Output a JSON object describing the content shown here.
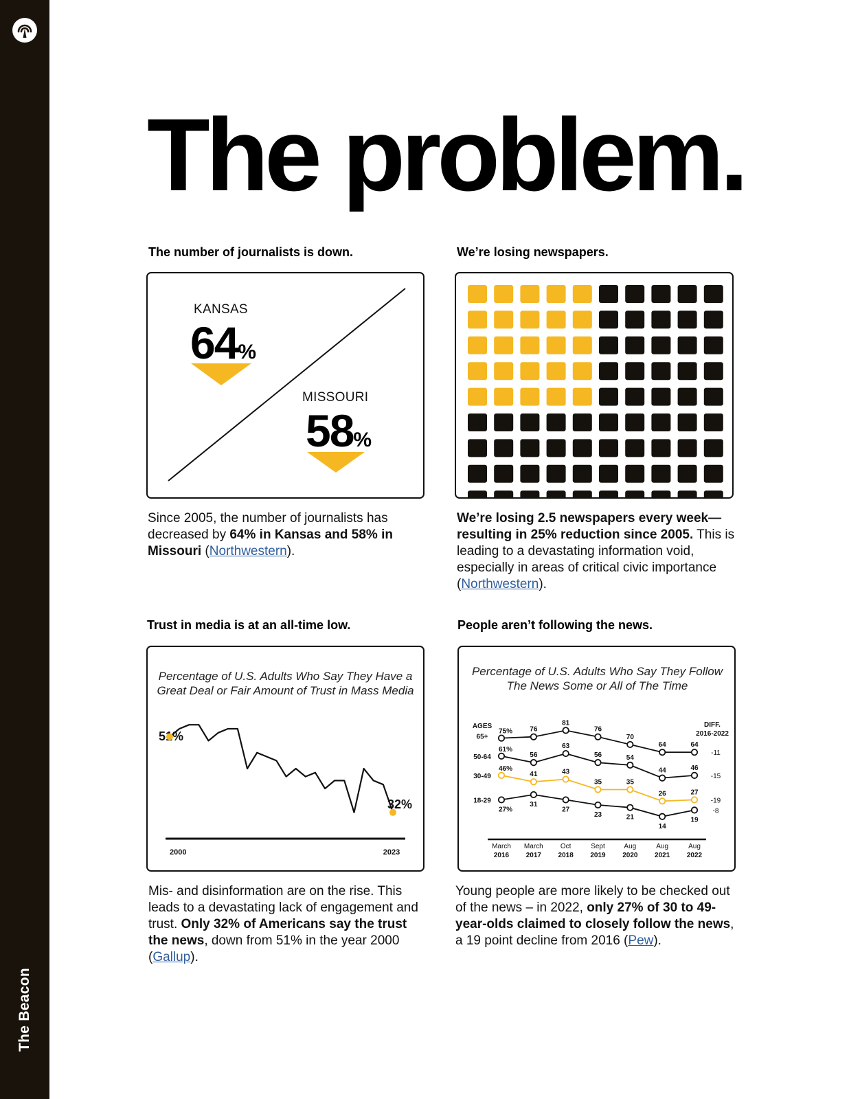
{
  "brand": {
    "name": "The Beacon",
    "logo_icon": "beacon-broadcast-icon"
  },
  "page_title": "The problem.",
  "colors": {
    "accent": "#f5b823",
    "dark": "#1a130c",
    "link": "#2f5e9e"
  },
  "sections": {
    "journalists": {
      "heading": "The number of journalists is down.",
      "kansas_label": "KANSAS",
      "kansas_value": "64",
      "missouri_label": "MISSOURI",
      "missouri_value": "58",
      "percent_sign": "%",
      "body_1": "Since 2005, the number of journalists has decreased by ",
      "body_bold": "64% in Kansas and 58% in Missouri",
      "body_2": " (",
      "link": "Northwestern",
      "body_3": ")."
    },
    "newspapers": {
      "heading": "We’re losing newspapers.",
      "grid": {
        "rows": 10,
        "cols": 10,
        "highlighted_rows": 5,
        "highlighted_cols": 5
      },
      "body_bold": "We’re losing 2.5 newspapers every week—resulting in 25% reduction since 2005.",
      "body_1": " This is leading to a devastating information void, especially in areas of critical civic importance (",
      "link": "Northwestern",
      "body_2": ")."
    },
    "trust": {
      "heading": "Trust in media is at an all-time low.",
      "body_1": "Mis- and disinformation are on the rise. This leads to a devastating lack of engagement and trust. ",
      "body_bold": "Only 32% of Americans say the trust the news",
      "body_2": ", down from 51% in the year 2000 (",
      "link": "Gallup",
      "body_3": ")."
    },
    "following": {
      "heading": "People aren’t following the news.",
      "body_1": "Young people are more likely to be checked out of the news – in 2022, ",
      "body_bold": "only 27% of 30 to 49-year-olds claimed to closely follow the news",
      "body_2": ", a 19 point decline from 2016 (",
      "link": "Pew",
      "body_3": ")."
    }
  },
  "chart_data": [
    {
      "type": "line",
      "title": "Percentage of U.S. Adults Who Say They Have a Great Deal or Fair Amount of Trust in Mass Media",
      "x_start_label": "2000",
      "x_end_label": "2023",
      "start_value_label": "51%",
      "end_value_label": "32%",
      "x": [
        2000,
        2001,
        2002,
        2003,
        2004,
        2005,
        2006,
        2007,
        2008,
        2009,
        2010,
        2011,
        2012,
        2013,
        2014,
        2015,
        2016,
        2017,
        2018,
        2019,
        2020,
        2021,
        2022,
        2023
      ],
      "values": [
        51,
        53,
        54,
        54,
        50,
        52,
        53,
        53,
        43,
        47,
        46,
        45,
        41,
        43,
        41,
        42,
        38,
        40,
        40,
        32,
        43,
        40,
        39,
        32
      ],
      "ylim": [
        28,
        58
      ],
      "highlight_color": "#f5b823",
      "line_color": "#111111"
    },
    {
      "type": "line",
      "title": "Percentage of U.S. Adults Who Say They Follow The News Some or All of The Time",
      "categories": [
        [
          "March",
          "2016"
        ],
        [
          "March",
          "2017"
        ],
        [
          "Oct",
          "2018"
        ],
        [
          "Sept",
          "2019"
        ],
        [
          "Aug",
          "2020"
        ],
        [
          "Aug",
          "2021"
        ],
        [
          "Aug",
          "2022"
        ]
      ],
      "legend_header": "AGES",
      "diff_header": [
        "DIFF.",
        "2016-2022"
      ],
      "ylim": [
        8,
        86
      ],
      "series": [
        {
          "name": "65+",
          "values": [
            75,
            76,
            81,
            76,
            70,
            64,
            64
          ],
          "labels": [
            "75%",
            "76",
            "81",
            "76",
            "70",
            "64",
            "64"
          ],
          "diff": "-11",
          "color": "#111111",
          "highlight": false
        },
        {
          "name": "50-64",
          "values": [
            61,
            56,
            63,
            56,
            54,
            44,
            46
          ],
          "labels": [
            "61%",
            "56",
            "63",
            "56",
            "54",
            "44",
            "46"
          ],
          "diff": "-15",
          "color": "#111111",
          "highlight": false
        },
        {
          "name": "30-49",
          "values": [
            46,
            41,
            43,
            35,
            35,
            26,
            27
          ],
          "labels": [
            "46%",
            "41",
            "43",
            "35",
            "35",
            "26",
            "27"
          ],
          "diff": "-19",
          "color": "#f5b823",
          "highlight": true
        },
        {
          "name": "18-29",
          "values": [
            27,
            31,
            27,
            23,
            21,
            14,
            19
          ],
          "labels": [
            "27%",
            "31",
            "27",
            "23",
            "21",
            "14",
            "19"
          ],
          "diff": "-8",
          "color": "#111111",
          "highlight": false
        }
      ]
    }
  ]
}
